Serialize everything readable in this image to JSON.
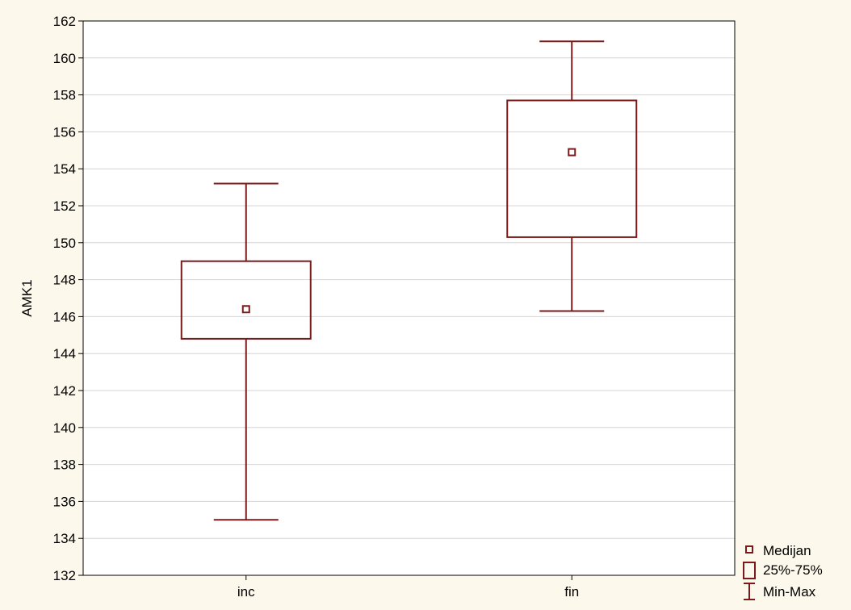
{
  "chart_data": {
    "type": "boxplot",
    "ylabel": "AMK1",
    "ylim": [
      132,
      162
    ],
    "yticks": [
      132,
      134,
      136,
      138,
      140,
      142,
      144,
      146,
      148,
      150,
      152,
      154,
      156,
      158,
      160,
      162
    ],
    "grid": true,
    "categories": [
      "inc",
      "fin"
    ],
    "boxes": [
      {
        "category": "inc",
        "min": 135.0,
        "q1": 144.8,
        "median": 146.4,
        "q3": 149.0,
        "max": 153.2
      },
      {
        "category": "fin",
        "min": 146.3,
        "q1": 150.3,
        "median": 154.9,
        "q3": 157.7,
        "max": 160.9
      }
    ],
    "legend": {
      "placement": "bottom-right",
      "entries": [
        "Medijan",
        "25%-75%",
        "Min-Max"
      ]
    },
    "colors": {
      "series": "#7a1a1a",
      "background": "#fdf8ec",
      "plot_background": "#ffffff",
      "grid": "#d4d4d4"
    }
  }
}
